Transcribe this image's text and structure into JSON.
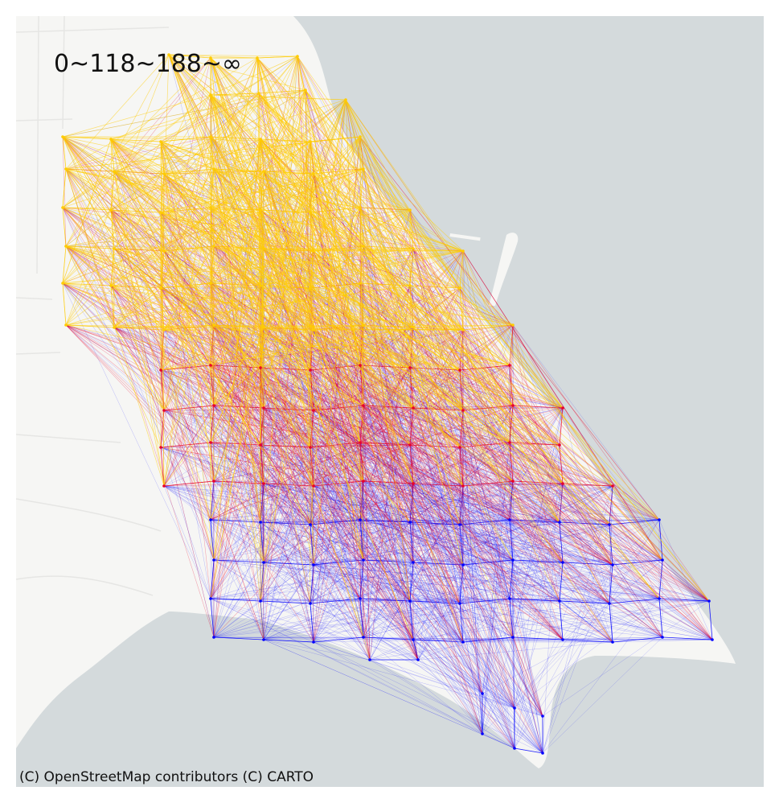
{
  "legend": {
    "label": "0~118~188~∞"
  },
  "attribution": "(C) OpenStreetMap contributors (C) CARTO",
  "colors": {
    "water": "#d4dadc",
    "land": "#f6f6f4",
    "road": "#ffffff",
    "low": "#0000ff",
    "mid": "#e8002a",
    "high": "#ffcc00"
  },
  "map": {
    "theme": "light basemap, origin-destination flow lines between grid nodes",
    "bins": [
      "0~118",
      "118~188",
      "188~∞"
    ]
  }
}
